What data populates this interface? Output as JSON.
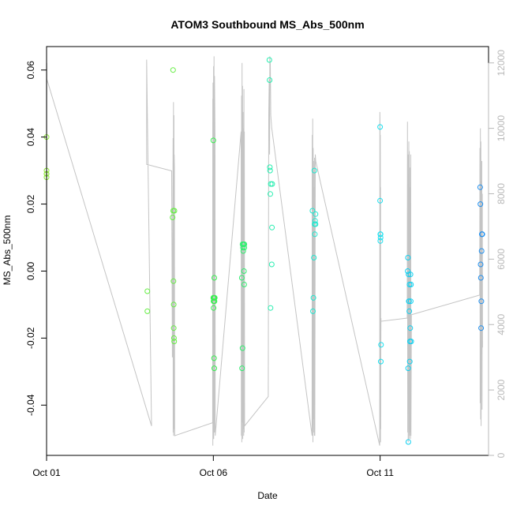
{
  "chart_data": {
    "type": "scatter",
    "title": "ATOM3 Southbound MS_Abs_500nm",
    "xlabel": "Date",
    "ylabel": "MS_Abs_500nm",
    "x_is_date": true,
    "xlim": [
      "2016-10-01T00:00",
      "2016-10-14T06:00"
    ],
    "ylim": [
      -0.055,
      0.067
    ],
    "ylim_right": [
      0,
      12500
    ],
    "x_ticks": [
      {
        "x": "2016-10-01T00:00",
        "label": "Oct 01"
      },
      {
        "x": "2016-10-06T00:00",
        "label": "Oct 06"
      },
      {
        "x": "2016-10-11T00:00",
        "label": "Oct 11"
      }
    ],
    "y_ticks": [
      {
        "value": 0.06,
        "label": "0.06"
      },
      {
        "value": 0.04,
        "label": "0.04"
      },
      {
        "value": 0.02,
        "label": "0.02"
      },
      {
        "value": 0.0,
        "label": "0.00"
      },
      {
        "value": -0.02,
        "label": "-0.02"
      },
      {
        "value": -0.04,
        "label": "-0.04"
      }
    ],
    "y_ticks_right": [
      {
        "value": 0,
        "label": "0"
      },
      {
        "value": 2000,
        "label": "2000"
      },
      {
        "value": 4000,
        "label": "4000"
      },
      {
        "value": 6000,
        "label": "6000"
      },
      {
        "value": 8000,
        "label": "8000"
      },
      {
        "value": 10000,
        "label": "10000"
      },
      {
        "value": 12000,
        "label": "12000"
      }
    ],
    "grid": false,
    "colors": {
      "line": "#c4c4c4",
      "axis": "#000000",
      "right_axis": "#b8b8b8"
    },
    "series": [
      {
        "color": "#8fe83a",
        "x": [
          "2016-10-01T00:00",
          "2016-10-01T00:00",
          "2016-10-01T00:00",
          "2016-10-01T00:00",
          "2016-10-01T00:00"
        ],
        "y": [
          0.04,
          0.03,
          0.029,
          0.028,
          0.029
        ]
      },
      {
        "color": "#66ee44",
        "x": [
          "2016-10-04T00:30",
          "2016-10-04T00:30",
          "2016-10-04T18:40",
          "2016-10-04T19:00",
          "2016-10-04T19:10",
          "2016-10-04T19:20",
          "2016-10-04T19:30",
          "2016-10-04T19:30",
          "2016-10-04T19:40",
          "2016-10-04T19:50",
          "2016-10-04T20:00"
        ],
        "y": [
          -0.006,
          -0.012,
          0.016,
          0.06,
          0.018,
          -0.003,
          -0.01,
          -0.017,
          -0.02,
          -0.021,
          0.018
        ]
      },
      {
        "color": "#38f050",
        "x": [
          "2016-10-06T00:00",
          "2016-10-06T00:00",
          "2016-10-06T00:10",
          "2016-10-06T00:10",
          "2016-10-06T00:20",
          "2016-10-06T00:20",
          "2016-10-06T00:30",
          "2016-10-06T00:30",
          "2016-10-06T00:40",
          "2016-10-06T00:40",
          "2016-10-06T00:50",
          "2016-10-06T00:50",
          "2016-10-06T01:00",
          "2016-10-06T00:05"
        ],
        "y": [
          0.039,
          -0.008,
          -0.009,
          -0.011,
          -0.008,
          -0.009,
          -0.008,
          -0.026,
          -0.029,
          -0.002,
          -0.008,
          -0.009,
          -0.008,
          -0.008
        ]
      },
      {
        "color": "#30ee70",
        "x": [
          "2016-10-06T20:30",
          "2016-10-06T20:40",
          "2016-10-06T21:00",
          "2016-10-06T21:00",
          "2016-10-06T21:20",
          "2016-10-06T21:30",
          "2016-10-06T21:40",
          "2016-10-06T21:50",
          "2016-10-06T22:00",
          "2016-10-06T22:10",
          "2016-10-06T22:20",
          "2016-10-06T22:20"
        ],
        "y": [
          -0.002,
          -0.029,
          -0.023,
          0.008,
          0.007,
          0.006,
          0.008,
          0.008,
          0.0,
          -0.004,
          0.008,
          0.007
        ]
      },
      {
        "color": "#28eeb0",
        "x": [
          "2016-10-07T16:20",
          "2016-10-07T16:30",
          "2016-10-07T16:40",
          "2016-10-07T16:50",
          "2016-10-07T17:00",
          "2016-10-07T17:10",
          "2016-10-07T17:20",
          "2016-10-07T18:00",
          "2016-10-07T18:10",
          "2016-10-07T18:20"
        ],
        "y": [
          0.063,
          0.057,
          0.031,
          0.03,
          0.023,
          -0.011,
          0.026,
          0.002,
          0.013,
          0.026
        ]
      },
      {
        "color": "#20e8d0",
        "x": [
          "2016-10-08T23:20",
          "2016-10-08T23:40",
          "2016-10-09T00:00",
          "2016-10-09T00:20",
          "2016-10-09T00:40",
          "2016-10-09T00:50",
          "2016-10-09T01:00",
          "2016-10-09T01:10",
          "2016-10-09T01:30",
          "2016-10-09T01:30"
        ],
        "y": [
          0.018,
          -0.012,
          -0.008,
          0.004,
          0.03,
          0.014,
          0.011,
          0.015,
          0.017,
          0.014
        ]
      },
      {
        "color": "#18e0f0",
        "x": [
          "2016-10-11T00:00",
          "2016-10-11T00:00",
          "2016-10-11T00:10",
          "2016-10-11T00:10",
          "2016-10-11T00:20",
          "2016-10-11T00:20",
          "2016-10-11T00:30",
          "2016-10-11T00:40"
        ],
        "y": [
          0.043,
          0.021,
          0.011,
          0.009,
          0.011,
          0.01,
          -0.027,
          -0.022
        ]
      },
      {
        "color": "#10d0f0",
        "x": [
          "2016-10-11T19:50",
          "2016-10-11T20:00",
          "2016-10-11T20:10",
          "2016-10-11T20:20",
          "2016-10-11T20:30",
          "2016-10-11T20:40",
          "2016-10-11T20:50",
          "2016-10-11T21:00",
          "2016-10-11T21:10",
          "2016-10-11T21:20",
          "2016-10-11T21:30",
          "2016-10-11T21:40",
          "2016-10-11T21:50",
          "2016-10-11T22:00",
          "2016-10-11T22:10",
          "2016-10-11T22:20"
        ],
        "y": [
          0.0,
          0.004,
          -0.029,
          -0.051,
          -0.001,
          -0.009,
          -0.009,
          -0.012,
          -0.004,
          -0.027,
          -0.021,
          -0.017,
          -0.001,
          -0.009,
          -0.004,
          -0.021
        ]
      },
      {
        "color": "#2090f0",
        "x": [
          "2016-10-14T00:00",
          "2016-10-14T00:10",
          "2016-10-14T00:20",
          "2016-10-14T00:30",
          "2016-10-14T00:40",
          "2016-10-14T00:50",
          "2016-10-14T01:00",
          "2016-10-14T01:10",
          "2016-10-14T01:20",
          "2016-10-14T01:30"
        ],
        "y": [
          0.025,
          0.02,
          0.002,
          -0.002,
          -0.017,
          -0.009,
          0.006,
          0.011,
          0.011,
          0.011
        ]
      }
    ],
    "line_series": {
      "axis": "right",
      "x": [
        "2016-10-01T00:00",
        "2016-10-01T00:05",
        "2016-10-01T00:10",
        "2016-10-01T00:15",
        "2016-10-04T03:30",
        "2016-10-04T00:00",
        "2016-10-04T00:00",
        "2016-10-04T18:00",
        "2016-10-04T18:30",
        "2016-10-04T19:00",
        "2016-10-04T19:05",
        "2016-10-04T19:10",
        "2016-10-04T19:15",
        "2016-10-04T19:20",
        "2016-10-04T19:25",
        "2016-10-04T19:30",
        "2016-10-04T19:35",
        "2016-10-04T19:40",
        "2016-10-04T19:45",
        "2016-10-04T19:50",
        "2016-10-04T20:00",
        "2016-10-04T20:10",
        "2016-10-05T23:30",
        "2016-10-05T23:35",
        "2016-10-05T23:40",
        "2016-10-05T23:45",
        "2016-10-05T23:50",
        "2016-10-05T23:55",
        "2016-10-06T00:00",
        "2016-10-06T00:05",
        "2016-10-06T00:10",
        "2016-10-06T00:15",
        "2016-10-06T00:20",
        "2016-10-06T00:25",
        "2016-10-06T00:30",
        "2016-10-06T00:35",
        "2016-10-06T00:40",
        "2016-10-06T00:45",
        "2016-10-06T00:50",
        "2016-10-06T01:00",
        "2016-10-06T01:10",
        "2016-10-06T01:20",
        "2016-10-06T20:00",
        "2016-10-06T20:10",
        "2016-10-06T20:20",
        "2016-10-06T20:30",
        "2016-10-06T20:40",
        "2016-10-06T20:50",
        "2016-10-06T21:00",
        "2016-10-06T21:10",
        "2016-10-06T21:20",
        "2016-10-06T21:30",
        "2016-10-06T21:40",
        "2016-10-06T21:50",
        "2016-10-06T22:00",
        "2016-10-06T22:10",
        "2016-10-06T22:20",
        "2016-10-06T22:30",
        "2016-10-07T15:30",
        "2016-10-07T15:50",
        "2016-10-07T16:10",
        "2016-10-07T16:20",
        "2016-10-07T16:30",
        "2016-10-07T16:40",
        "2016-10-07T16:50",
        "2016-10-07T17:00",
        "2016-10-07T17:10",
        "2016-10-07T17:20",
        "2016-10-07T17:40",
        "2016-10-07T18:00",
        "2016-10-07T18:20",
        "2016-10-08T23:00",
        "2016-10-08T23:10",
        "2016-10-08T23:20",
        "2016-10-08T23:30",
        "2016-10-08T23:40",
        "2016-10-08T23:50",
        "2016-10-09T00:00",
        "2016-10-09T00:10",
        "2016-10-09T00:20",
        "2016-10-09T00:30",
        "2016-10-09T00:40",
        "2016-10-09T00:50",
        "2016-10-09T01:00",
        "2016-10-09T01:20",
        "2016-10-09T01:40",
        "2016-10-10T23:40",
        "2016-10-10T23:50",
        "2016-10-11T00:00",
        "2016-10-11T00:05",
        "2016-10-11T00:10",
        "2016-10-11T00:15",
        "2016-10-11T00:20",
        "2016-10-11T00:25",
        "2016-10-11T00:30",
        "2016-10-11T00:35",
        "2016-10-11T00:40",
        "2016-10-11T19:30",
        "2016-10-11T19:40",
        "2016-10-11T19:50",
        "2016-10-11T20:00",
        "2016-10-11T20:10",
        "2016-10-11T20:20",
        "2016-10-11T20:30",
        "2016-10-11T20:40",
        "2016-10-11T20:50",
        "2016-10-11T21:00",
        "2016-10-11T21:10",
        "2016-10-11T21:20",
        "2016-10-11T21:30",
        "2016-10-11T21:40",
        "2016-10-11T21:50",
        "2016-10-11T22:00",
        "2016-10-11T22:10",
        "2016-10-11T22:30",
        "2016-10-13T23:40",
        "2016-10-13T23:50",
        "2016-10-14T00:00",
        "2016-10-14T00:10",
        "2016-10-14T00:20",
        "2016-10-14T00:30",
        "2016-10-14T00:40",
        "2016-10-14T00:50",
        "2016-10-14T01:00",
        "2016-10-14T01:10",
        "2016-10-14T01:20",
        "2016-10-14T01:30",
        "2016-10-14T01:40"
      ],
      "y": [
        3500,
        4000,
        12000,
        11500,
        900,
        12100,
        8900,
        8700,
        3000,
        9700,
        700,
        9000,
        1800,
        10800,
        600,
        9500,
        800,
        10400,
        1200,
        9200,
        8800,
        600,
        1000,
        10900,
        300,
        11400,
        500,
        10600,
        10600,
        800,
        11900,
        500,
        10800,
        1200,
        12200,
        1000,
        10000,
        700,
        11600,
        10800,
        9800,
        600,
        9900,
        600,
        11000,
        400,
        12000,
        1000,
        11300,
        500,
        10500,
        800,
        10000,
        600,
        11200,
        700,
        9900,
        900,
        1800,
        10400,
        11500,
        10400,
        9200,
        12200,
        11700,
        12000,
        11300,
        10400,
        10200,
        10000,
        9900,
        600,
        9800,
        900,
        10300,
        400,
        9400,
        700,
        9000,
        1100,
        8200,
        600,
        9100,
        600,
        9200,
        9000,
        300,
        10500,
        10000,
        600,
        9800,
        400,
        8200,
        800,
        3000,
        4200,
        4100,
        4200,
        10200,
        700,
        9200,
        400,
        8300,
        1400,
        9600,
        500,
        9300,
        600,
        8800,
        700,
        8200,
        500,
        9200,
        600,
        4300,
        4900,
        9400,
        1600,
        10000,
        1100,
        9600,
        900,
        8400,
        3100,
        9000,
        1400,
        8000,
        3300
      ]
    }
  }
}
